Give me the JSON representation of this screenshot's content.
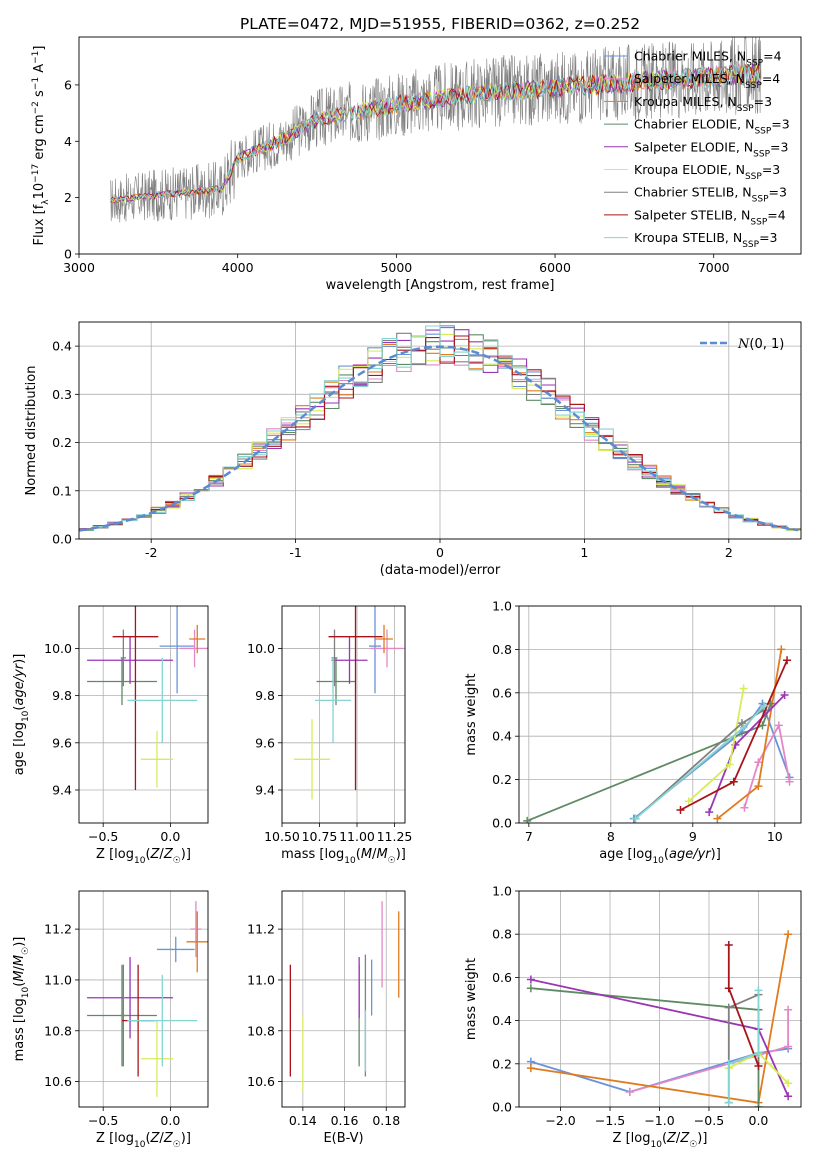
{
  "figure_title": "PLATE=0472, MJD=51955, FIBERID=0362, z=0.252",
  "colors": {
    "Chabrier MILES": "#6a93d8",
    "Salpeter MILES": "#e387c6",
    "Kroupa MILES": "#e07b1f",
    "Chabrier ELODIE": "#5f8a63",
    "Salpeter ELODIE": "#9a35b4",
    "Kroupa ELODIE": "#d8ec5a",
    "Chabrier STELIB": "#808080",
    "Salpeter STELIB": "#a8141a",
    "Kroupa STELIB": "#84d4d4"
  },
  "chart_data": [
    {
      "id": "spectrum",
      "type": "line",
      "xlabel": "wavelength [Angstrom, rest frame]",
      "ylabel": "Flux [f_λ 10^-17 erg cm^-2 s^-1 A^-1]",
      "xlim": [
        3000,
        7550
      ],
      "ylim": [
        0,
        7.7
      ],
      "xticks": [
        3000,
        4000,
        5000,
        6000,
        7000
      ],
      "yticks": [
        0,
        2,
        4,
        6
      ],
      "grid": false,
      "legend_position": "right",
      "legend": [
        {
          "name": "Chabrier MILES",
          "nssp": 4
        },
        {
          "name": "Salpeter MILES",
          "nssp": 4
        },
        {
          "name": "Kroupa MILES",
          "nssp": 3
        },
        {
          "name": "Chabrier ELODIE",
          "nssp": 3
        },
        {
          "name": "Salpeter ELODIE",
          "nssp": 3
        },
        {
          "name": "Kroupa ELODIE",
          "nssp": 3
        },
        {
          "name": "Chabrier STELIB",
          "nssp": 3
        },
        {
          "name": "Salpeter STELIB",
          "nssp": 4
        },
        {
          "name": "Kroupa STELIB",
          "nssp": 3
        }
      ],
      "continuum": {
        "wavelength": [
          3200,
          3500,
          3900,
          4000,
          4300,
          4500,
          5000,
          5500,
          6000,
          6500,
          7000,
          7300
        ],
        "flux": [
          1.9,
          2.1,
          2.3,
          3.4,
          4.1,
          4.8,
          5.3,
          5.7,
          5.9,
          6.1,
          6.3,
          6.4
        ]
      },
      "model_range": [
        3200,
        7300
      ]
    },
    {
      "id": "residual_hist",
      "type": "line",
      "xlabel": "(data-model)/error",
      "ylabel": "Normed distribution",
      "xlim": [
        -2.5,
        2.5
      ],
      "ylim": [
        0,
        0.45
      ],
      "xticks": [
        -2,
        -1,
        0,
        1,
        2
      ],
      "yticks": [
        0,
        0.1,
        0.2,
        0.3,
        0.4
      ],
      "grid": true,
      "legend_position": "top-right",
      "reference_curve": {
        "name": "N(0,1)",
        "mean": 0,
        "sigma": 1
      },
      "bin_width": 0.1,
      "series": [
        {
          "name": "Chabrier MILES",
          "jitter_seed": 1
        },
        {
          "name": "Salpeter MILES",
          "jitter_seed": 2
        },
        {
          "name": "Kroupa MILES",
          "jitter_seed": 3
        },
        {
          "name": "Chabrier ELODIE",
          "jitter_seed": 4
        },
        {
          "name": "Salpeter ELODIE",
          "jitter_seed": 5
        },
        {
          "name": "Kroupa ELODIE",
          "jitter_seed": 6
        },
        {
          "name": "Chabrier STELIB",
          "jitter_seed": 7
        },
        {
          "name": "Salpeter STELIB",
          "jitter_seed": 8
        },
        {
          "name": "Kroupa STELIB",
          "jitter_seed": 9
        }
      ]
    },
    {
      "id": "z_age",
      "type": "scatter",
      "xlabel": "Z [log10(Z/Z☉)]",
      "ylabel": "age [log10(age/yr)]",
      "xlim": [
        -0.68,
        0.28
      ],
      "ylim": [
        9.26,
        10.18
      ],
      "xticks": [
        -0.5,
        0.0
      ],
      "xticklabels": [
        "−0.5",
        "0.0"
      ],
      "yticks": [
        9.4,
        9.6,
        9.8,
        10.0
      ],
      "grid": true,
      "points": [
        {
          "s": "Chabrier MILES",
          "x": 0.05,
          "y": 10.01,
          "xerr": 0.13,
          "yerr": 0.2
        },
        {
          "s": "Salpeter MILES",
          "x": 0.18,
          "y": 10.0,
          "xerr": 0.11,
          "yerr": 0.08
        },
        {
          "s": "Kroupa MILES",
          "x": 0.2,
          "y": 10.04,
          "xerr": 0.06,
          "yerr": 0.06
        },
        {
          "s": "Chabrier ELODIE",
          "x": -0.36,
          "y": 9.86,
          "xerr": 0.26,
          "yerr": 0.1
        },
        {
          "s": "Salpeter ELODIE",
          "x": -0.3,
          "y": 9.95,
          "xerr": 0.32,
          "yerr": 0.1
        },
        {
          "s": "Kroupa ELODIE",
          "x": -0.1,
          "y": 9.53,
          "xerr": 0.12,
          "yerr": 0.12
        },
        {
          "s": "Chabrier STELIB",
          "x": -0.35,
          "y": 9.96,
          "xerr": 0.02,
          "yerr": 0.12
        },
        {
          "s": "Salpeter STELIB",
          "x": -0.26,
          "y": 10.05,
          "xerr": 0.17,
          "yerr": 0.65
        },
        {
          "s": "Kroupa STELIB",
          "x": -0.06,
          "y": 9.78,
          "xerr": 0.26,
          "yerr": 0.18
        }
      ]
    },
    {
      "id": "mass_age",
      "type": "scatter",
      "xlabel": "mass [log10(M/M☉)]",
      "ylabel": "",
      "xlim": [
        10.5,
        11.32
      ],
      "ylim": [
        9.26,
        10.18
      ],
      "xticks": [
        10.5,
        10.75,
        11.0,
        11.25
      ],
      "xticklabels": [
        "10.50",
        "10.75",
        "11.00",
        "11.25"
      ],
      "yticks": [
        9.4,
        9.6,
        9.8,
        10.0
      ],
      "grid": true,
      "points": [
        {
          "s": "Chabrier MILES",
          "x": 11.12,
          "y": 10.01,
          "xerr": 0.04,
          "yerr": 0.2
        },
        {
          "s": "Salpeter MILES",
          "x": 11.2,
          "y": 10.0,
          "xerr": 0.11,
          "yerr": 0.08
        },
        {
          "s": "Kroupa MILES",
          "x": 11.18,
          "y": 10.04,
          "xerr": 0.06,
          "yerr": 0.06
        },
        {
          "s": "Chabrier ELODIE",
          "x": 10.86,
          "y": 9.86,
          "xerr": 0.13,
          "yerr": 0.1
        },
        {
          "s": "Salpeter ELODIE",
          "x": 10.95,
          "y": 9.95,
          "xerr": 0.12,
          "yerr": 0.1
        },
        {
          "s": "Kroupa ELODIE",
          "x": 10.7,
          "y": 9.53,
          "xerr": 0.12,
          "yerr": 0.17
        },
        {
          "s": "Chabrier STELIB",
          "x": 10.85,
          "y": 9.96,
          "xerr": 0.02,
          "yerr": 0.12
        },
        {
          "s": "Salpeter STELIB",
          "x": 10.99,
          "y": 10.05,
          "xerr": 0.18,
          "yerr": 0.65
        },
        {
          "s": "Kroupa STELIB",
          "x": 10.84,
          "y": 9.78,
          "xerr": 0.12,
          "yerr": 0.18
        }
      ]
    },
    {
      "id": "age_weight",
      "type": "line",
      "xlabel": "age [log10(age/yr)]",
      "ylabel": "mass weight",
      "xlim": [
        6.88,
        10.32
      ],
      "ylim": [
        0,
        1.0
      ],
      "xticks": [
        7,
        8,
        9,
        10
      ],
      "yticks": [
        0.0,
        0.2,
        0.4,
        0.6,
        0.8,
        1.0
      ],
      "grid": true,
      "series": [
        {
          "name": "Chabrier MILES",
          "x": [
            8.28,
            9.6,
            9.85,
            10.18
          ],
          "y": [
            0.02,
            0.42,
            0.55,
            0.21
          ]
        },
        {
          "name": "Salpeter MILES",
          "x": [
            9.63,
            9.8,
            10.05,
            10.18
          ],
          "y": [
            0.07,
            0.28,
            0.45,
            0.19
          ]
        },
        {
          "name": "Kroupa MILES",
          "x": [
            9.3,
            9.8,
            10.08
          ],
          "y": [
            0.02,
            0.17,
            0.8
          ]
        },
        {
          "name": "Chabrier ELODIE",
          "x": [
            6.98,
            9.85,
            9.95
          ],
          "y": [
            0.01,
            0.45,
            0.55
          ]
        },
        {
          "name": "Salpeter ELODIE",
          "x": [
            9.2,
            9.52,
            10.12
          ],
          "y": [
            0.05,
            0.36,
            0.59
          ]
        },
        {
          "name": "Kroupa ELODIE",
          "x": [
            8.95,
            9.45,
            9.62
          ],
          "y": [
            0.1,
            0.27,
            0.62
          ]
        },
        {
          "name": "Chabrier STELIB",
          "x": [
            8.3,
            9.6,
            9.86
          ],
          "y": [
            0.02,
            0.46,
            0.52
          ]
        },
        {
          "name": "Salpeter STELIB",
          "x": [
            8.85,
            9.5,
            10.15
          ],
          "y": [
            0.06,
            0.19,
            0.75
          ]
        },
        {
          "name": "Kroupa STELIB",
          "x": [
            8.3,
            9.62,
            9.87
          ],
          "y": [
            0.02,
            0.44,
            0.54
          ]
        }
      ]
    },
    {
      "id": "z_mass",
      "type": "scatter",
      "xlabel": "Z [log10(Z/Z☉)]",
      "ylabel": "mass [log10(M/M☉)]",
      "xlim": [
        -0.68,
        0.28
      ],
      "ylim": [
        10.5,
        11.35
      ],
      "xticks": [
        -0.5,
        0.0
      ],
      "xticklabels": [
        "−0.5",
        "0.0"
      ],
      "yticks": [
        10.6,
        10.8,
        11.0,
        11.2
      ],
      "grid": true,
      "points": [
        {
          "s": "Chabrier MILES",
          "x": 0.04,
          "y": 11.12,
          "xerr": 0.14,
          "yerr": 0.05
        },
        {
          "s": "Salpeter MILES",
          "x": 0.19,
          "y": 11.2,
          "xerr": 0.04,
          "yerr": 0.11
        },
        {
          "s": "Kroupa MILES",
          "x": 0.2,
          "y": 11.15,
          "xerr": 0.08,
          "yerr": 0.12
        },
        {
          "s": "Chabrier ELODIE",
          "x": -0.36,
          "y": 10.86,
          "xerr": 0.26,
          "yerr": 0.2
        },
        {
          "s": "Salpeter ELODIE",
          "x": -0.3,
          "y": 10.93,
          "xerr": 0.32,
          "yerr": 0.16
        },
        {
          "s": "Kroupa ELODIE",
          "x": -0.1,
          "y": 10.69,
          "xerr": 0.12,
          "yerr": 0.15
        },
        {
          "s": "Chabrier STELIB",
          "x": -0.35,
          "y": 10.86,
          "xerr": 0.02,
          "yerr": 0.2
        },
        {
          "s": "Salpeter STELIB",
          "x": -0.24,
          "y": 10.84,
          "xerr": 0.12,
          "yerr": 0.22
        },
        {
          "s": "Kroupa STELIB",
          "x": -0.06,
          "y": 10.84,
          "xerr": 0.26,
          "yerr": 0.18
        }
      ]
    },
    {
      "id": "ebv_mass",
      "type": "scatter",
      "xlabel": "E(B-V)",
      "ylabel": "",
      "xlim": [
        0.13,
        0.189
      ],
      "ylim": [
        10.5,
        11.35
      ],
      "xticks": [
        0.14,
        0.16,
        0.18
      ],
      "xticklabels": [
        "0.14",
        "0.16",
        "0.18"
      ],
      "yticks": [
        10.6,
        10.8,
        11.0,
        11.2
      ],
      "grid": true,
      "points": [
        {
          "s": "Chabrier MILES",
          "x": 0.173,
          "y": 10.97,
          "yerr": 0.11
        },
        {
          "s": "Salpeter MILES",
          "x": 0.178,
          "y": 11.14,
          "yerr": 0.17
        },
        {
          "s": "Kroupa MILES",
          "x": 0.186,
          "y": 11.1,
          "yerr": 0.17
        },
        {
          "s": "Chabrier ELODIE",
          "x": 0.167,
          "y": 10.86,
          "yerr": 0.2
        },
        {
          "s": "Salpeter ELODIE",
          "x": 0.167,
          "y": 10.97,
          "yerr": 0.12
        },
        {
          "s": "Kroupa ELODIE",
          "x": 0.14,
          "y": 10.71,
          "yerr": 0.15
        },
        {
          "s": "Chabrier STELIB",
          "x": 0.17,
          "y": 10.86,
          "yerr": 0.24
        },
        {
          "s": "Salpeter STELIB",
          "x": 0.134,
          "y": 10.84,
          "yerr": 0.22
        },
        {
          "s": "Kroupa STELIB",
          "x": 0.17,
          "y": 10.76,
          "yerr": 0.12
        }
      ]
    },
    {
      "id": "z_weight",
      "type": "line",
      "xlabel": "Z [log10(Z/Z☉)]",
      "ylabel": "mass weight",
      "xlim": [
        -2.42,
        0.43
      ],
      "ylim": [
        0,
        1.0
      ],
      "xticks": [
        -2.0,
        -1.5,
        -1.0,
        -0.5,
        0.0
      ],
      "xticklabels": [
        "−2.0",
        "−1.5",
        "−1.0",
        "−0.5",
        "0.0"
      ],
      "yticks": [
        0.0,
        0.2,
        0.4,
        0.6,
        0.8,
        1.0
      ],
      "grid": true,
      "series": [
        {
          "name": "Chabrier MILES",
          "x": [
            -2.3,
            -1.3,
            0.0,
            0.3
          ],
          "y": [
            0.21,
            0.07,
            0.25,
            0.27
          ]
        },
        {
          "name": "Salpeter MILES",
          "x": [
            -1.3,
            0.0,
            0.3,
            0.3
          ],
          "y": [
            0.07,
            0.24,
            0.28,
            0.45
          ]
        },
        {
          "name": "Kroupa MILES",
          "x": [
            -2.3,
            0.0,
            0.3
          ],
          "y": [
            0.18,
            0.02,
            0.8
          ]
        },
        {
          "name": "Chabrier ELODIE",
          "x": [
            -2.3,
            0.0,
            0.0
          ],
          "y": [
            0.55,
            0.45,
            0.0
          ]
        },
        {
          "name": "Salpeter ELODIE",
          "x": [
            -2.3,
            0.0,
            0.3
          ],
          "y": [
            0.59,
            0.36,
            0.05
          ]
        },
        {
          "name": "Kroupa ELODIE",
          "x": [
            -0.3,
            0.0,
            0.3
          ],
          "y": [
            0.18,
            0.25,
            0.11
          ]
        },
        {
          "name": "Chabrier STELIB",
          "x": [
            -0.3,
            -0.3,
            0.0
          ],
          "y": [
            0.02,
            0.46,
            0.52
          ]
        },
        {
          "name": "Salpeter STELIB",
          "x": [
            -0.3,
            -0.3,
            0.0
          ],
          "y": [
            0.75,
            0.55,
            0.19
          ]
        },
        {
          "name": "Kroupa STELIB",
          "x": [
            -0.3,
            -0.3,
            0.0,
            0.0
          ],
          "y": [
            0.02,
            0.2,
            0.25,
            0.54
          ]
        }
      ]
    }
  ]
}
